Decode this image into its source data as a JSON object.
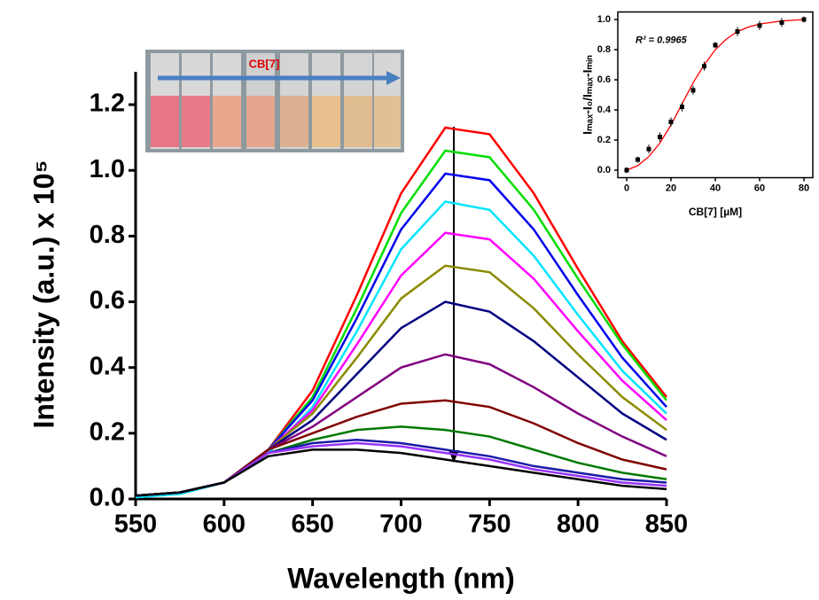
{
  "chart_data": [
    {
      "type": "line",
      "x_label": "Wavelength (nm)",
      "y_label": "Intensity (a.u.) x 10⁵",
      "photo_label": "CB[7]",
      "x": [
        550,
        575,
        600,
        625,
        650,
        675,
        700,
        725,
        750,
        775,
        800,
        825,
        850
      ],
      "xlim": [
        550,
        850
      ],
      "xticks": [
        550,
        600,
        650,
        700,
        750,
        800,
        850
      ],
      "ylim": [
        0,
        1.3
      ],
      "yticks": [
        {
          "value": 0,
          "label": "0.0"
        },
        {
          "value": 0.2,
          "label": "0.2"
        },
        {
          "value": 0.4,
          "label": "0.4"
        },
        {
          "value": 0.6,
          "label": "0.6"
        },
        {
          "value": 0.8,
          "label": "0.8"
        },
        {
          "value": 1.0,
          "label": "1.0"
        },
        {
          "value": 1.2,
          "label": "1.2"
        }
      ],
      "series": [
        {
          "color": "#ff0000",
          "values": [
            0.01,
            0.02,
            0.05,
            0.15,
            0.33,
            0.62,
            0.93,
            1.13,
            1.11,
            0.93,
            0.7,
            0.48,
            0.31
          ]
        },
        {
          "color": "#00dd00",
          "values": [
            0.01,
            0.02,
            0.05,
            0.15,
            0.31,
            0.58,
            0.87,
            1.06,
            1.04,
            0.88,
            0.67,
            0.47,
            0.3
          ]
        },
        {
          "color": "#0000ee",
          "values": [
            0.01,
            0.02,
            0.05,
            0.15,
            0.3,
            0.55,
            0.82,
            0.99,
            0.97,
            0.82,
            0.62,
            0.43,
            0.28
          ]
        },
        {
          "color": "#00e5ff",
          "values": [
            0.005,
            0.015,
            0.05,
            0.14,
            0.28,
            0.51,
            0.76,
            0.905,
            0.88,
            0.74,
            0.56,
            0.39,
            0.26
          ]
        },
        {
          "color": "#ff00ff",
          "values": [
            0.01,
            0.02,
            0.05,
            0.15,
            0.27,
            0.47,
            0.68,
            0.81,
            0.79,
            0.67,
            0.51,
            0.36,
            0.24
          ]
        },
        {
          "color": "#8b8b00",
          "values": [
            0.01,
            0.02,
            0.05,
            0.15,
            0.26,
            0.43,
            0.61,
            0.71,
            0.69,
            0.58,
            0.44,
            0.31,
            0.21
          ]
        },
        {
          "color": "#000080",
          "values": [
            0.01,
            0.02,
            0.05,
            0.15,
            0.24,
            0.38,
            0.52,
            0.6,
            0.57,
            0.48,
            0.37,
            0.26,
            0.18
          ]
        },
        {
          "color": "#800080",
          "values": [
            0.01,
            0.02,
            0.05,
            0.15,
            0.22,
            0.31,
            0.4,
            0.44,
            0.41,
            0.34,
            0.26,
            0.19,
            0.13
          ]
        },
        {
          "color": "#800000",
          "values": [
            0.01,
            0.02,
            0.05,
            0.15,
            0.2,
            0.25,
            0.29,
            0.3,
            0.28,
            0.23,
            0.17,
            0.12,
            0.09
          ]
        },
        {
          "color": "#007a00",
          "values": [
            0.01,
            0.02,
            0.05,
            0.14,
            0.18,
            0.21,
            0.22,
            0.21,
            0.19,
            0.15,
            0.11,
            0.08,
            0.06
          ]
        },
        {
          "color": "#1a1aa6",
          "values": [
            0.01,
            0.02,
            0.05,
            0.14,
            0.17,
            0.18,
            0.17,
            0.15,
            0.13,
            0.1,
            0.08,
            0.06,
            0.05
          ]
        },
        {
          "color": "#9933ff",
          "values": [
            0.01,
            0.02,
            0.05,
            0.14,
            0.16,
            0.17,
            0.16,
            0.14,
            0.12,
            0.09,
            0.07,
            0.05,
            0.04
          ]
        },
        {
          "color": "#000000",
          "values": [
            0.01,
            0.02,
            0.05,
            0.13,
            0.15,
            0.15,
            0.14,
            0.12,
            0.1,
            0.08,
            0.06,
            0.04,
            0.03
          ]
        }
      ]
    },
    {
      "type": "scatter",
      "x_label": "CB[7] [µM]",
      "y_label": "Iₘₐₓ-I₀/Iₘₐₓ-Iₘᵢₙ",
      "annotation": "R² = 0.9965",
      "xlim": [
        -4,
        84
      ],
      "xticks": [
        0,
        20,
        40,
        60,
        80
      ],
      "ylim": [
        -0.05,
        1.05
      ],
      "yticks": [
        {
          "value": 0,
          "label": "0.0"
        },
        {
          "value": 0.2,
          "label": "0.2"
        },
        {
          "value": 0.4,
          "label": "0.4"
        },
        {
          "value": 0.6,
          "label": "0.6"
        },
        {
          "value": 0.8,
          "label": "0.8"
        },
        {
          "value": 1.0,
          "label": "1.0"
        }
      ],
      "x": [
        0,
        5,
        10,
        15,
        20,
        25,
        30,
        35,
        40,
        50,
        60,
        70,
        80
      ],
      "values": [
        0.0,
        0.07,
        0.14,
        0.22,
        0.32,
        0.42,
        0.53,
        0.69,
        0.83,
        0.92,
        0.96,
        0.98,
        1.0
      ],
      "errors": [
        0.02,
        0.02,
        0.03,
        0.03,
        0.03,
        0.03,
        0.03,
        0.03,
        0.02,
        0.03,
        0.03,
        0.03,
        0.02
      ],
      "color": "#000000",
      "fit": {
        "color": "#ff0000",
        "x": [
          0,
          5,
          10,
          15,
          20,
          25,
          30,
          35,
          40,
          45,
          50,
          55,
          60,
          65,
          70,
          75,
          80
        ],
        "values": [
          0.0,
          0.03,
          0.09,
          0.18,
          0.3,
          0.44,
          0.58,
          0.7,
          0.8,
          0.87,
          0.92,
          0.95,
          0.97,
          0.98,
          0.99,
          0.995,
          1.0
        ]
      }
    }
  ]
}
